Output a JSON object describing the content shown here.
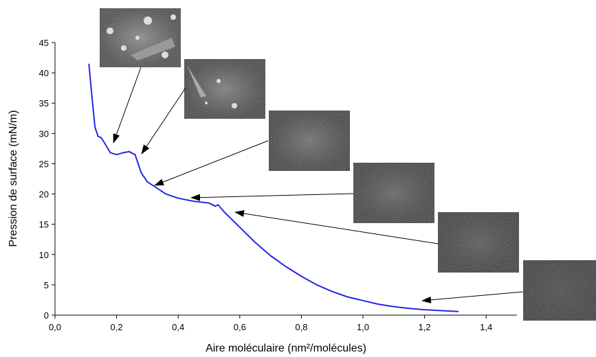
{
  "chart_data": {
    "type": "line",
    "xlabel": "Aire moléculaire (nm²/molécules)",
    "ylabel": "Pression de surface (mN/m)",
    "xlim": [
      0,
      1.5
    ],
    "ylim": [
      0,
      45
    ],
    "xticks": [
      {
        "value": 0,
        "label": "0,0"
      },
      {
        "value": 0.2,
        "label": "0,2"
      },
      {
        "value": 0.4,
        "label": "0,4"
      },
      {
        "value": 0.6,
        "label": "0,6"
      },
      {
        "value": 0.8,
        "label": "0,8"
      },
      {
        "value": 1.0,
        "label": "1,0"
      },
      {
        "value": 1.2,
        "label": "1,2"
      },
      {
        "value": 1.4,
        "label": "1,4"
      }
    ],
    "yticks": [
      0,
      5,
      10,
      15,
      20,
      25,
      30,
      35,
      40,
      45
    ],
    "series": [
      {
        "color": "#2424e6",
        "x": [
          0.11,
          0.12,
          0.13,
          0.14,
          0.15,
          0.16,
          0.18,
          0.2,
          0.22,
          0.24,
          0.26,
          0.27,
          0.28,
          0.3,
          0.33,
          0.36,
          0.4,
          0.45,
          0.5,
          0.52,
          0.53,
          0.55,
          0.6,
          0.65,
          0.7,
          0.75,
          0.8,
          0.85,
          0.9,
          0.95,
          1.0,
          1.05,
          1.1,
          1.15,
          1.2,
          1.25,
          1.31
        ],
        "values": [
          41.5,
          36,
          31,
          29.5,
          29.3,
          28.5,
          26.8,
          26.5,
          26.8,
          27,
          26.5,
          25,
          23.5,
          22,
          21,
          20,
          19.3,
          18.8,
          18.5,
          18,
          18.2,
          17,
          14.5,
          12,
          9.8,
          8,
          6.4,
          5,
          3.9,
          3,
          2.4,
          1.8,
          1.4,
          1.1,
          0.9,
          0.75,
          0.6
        ]
      }
    ]
  }
}
